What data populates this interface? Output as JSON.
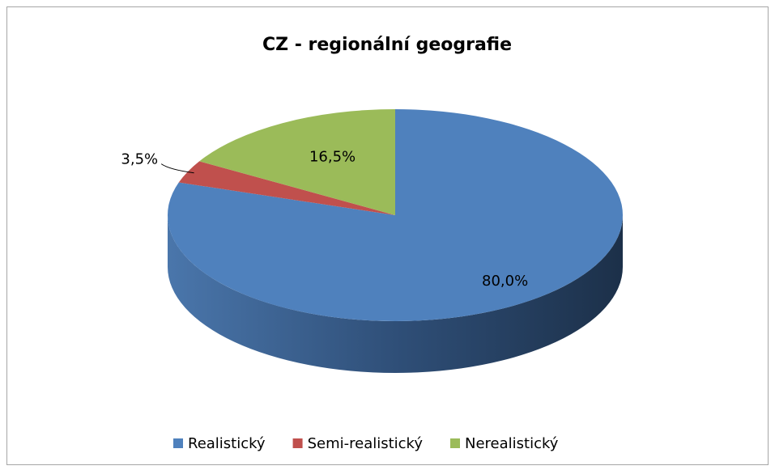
{
  "chart_data": {
    "type": "pie",
    "title": "CZ - regionální geografie",
    "categories": [
      "Realistický",
      "Semi-realistický",
      "Nerealistický"
    ],
    "values": [
      80.0,
      3.5,
      16.5
    ],
    "value_labels": [
      "80,0%",
      "3,5%",
      "16,5%"
    ],
    "colors": [
      "#4f81bd",
      "#c0504d",
      "#9bbb59"
    ],
    "legend": "bottom"
  }
}
